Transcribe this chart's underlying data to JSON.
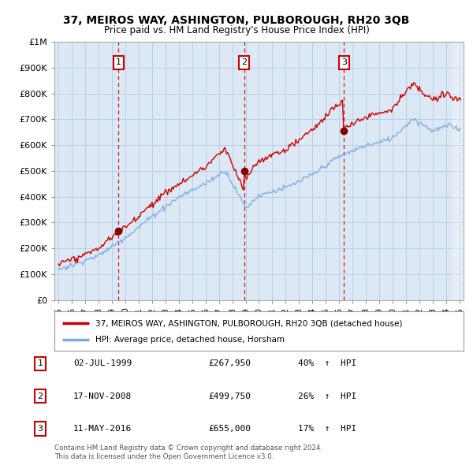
{
  "title": "37, MEIROS WAY, ASHINGTON, PULBOROUGH, RH20 3QB",
  "subtitle": "Price paid vs. HM Land Registry's House Price Index (HPI)",
  "transactions": [
    {
      "num": 1,
      "date": "02-JUL-1999",
      "year": 1999.5,
      "price": 267950,
      "pct": "40%",
      "dir": "↑"
    },
    {
      "num": 2,
      "date": "17-NOV-2008",
      "year": 2008.88,
      "price": 499750,
      "pct": "26%",
      "dir": "↑"
    },
    {
      "num": 3,
      "date": "11-MAY-2016",
      "year": 2016.36,
      "price": 655000,
      "pct": "17%",
      "dir": "↑"
    }
  ],
  "legend_property": "37, MEIROS WAY, ASHINGTON, PULBOROUGH, RH20 3QB (detached house)",
  "legend_hpi": "HPI: Average price, detached house, Horsham",
  "footer1": "Contains HM Land Registry data © Crown copyright and database right 2024.",
  "footer2": "This data is licensed under the Open Government Licence v3.0.",
  "ylim": [
    0,
    1000000
  ],
  "xlim": [
    1994.7,
    2025.3
  ],
  "red_color": "#cc0000",
  "blue_color": "#7aaadd",
  "vline_color": "#cc0000",
  "bg_color": "#ffffff",
  "chart_bg_color": "#dde8f5",
  "grid_color": "#b8cfe8"
}
